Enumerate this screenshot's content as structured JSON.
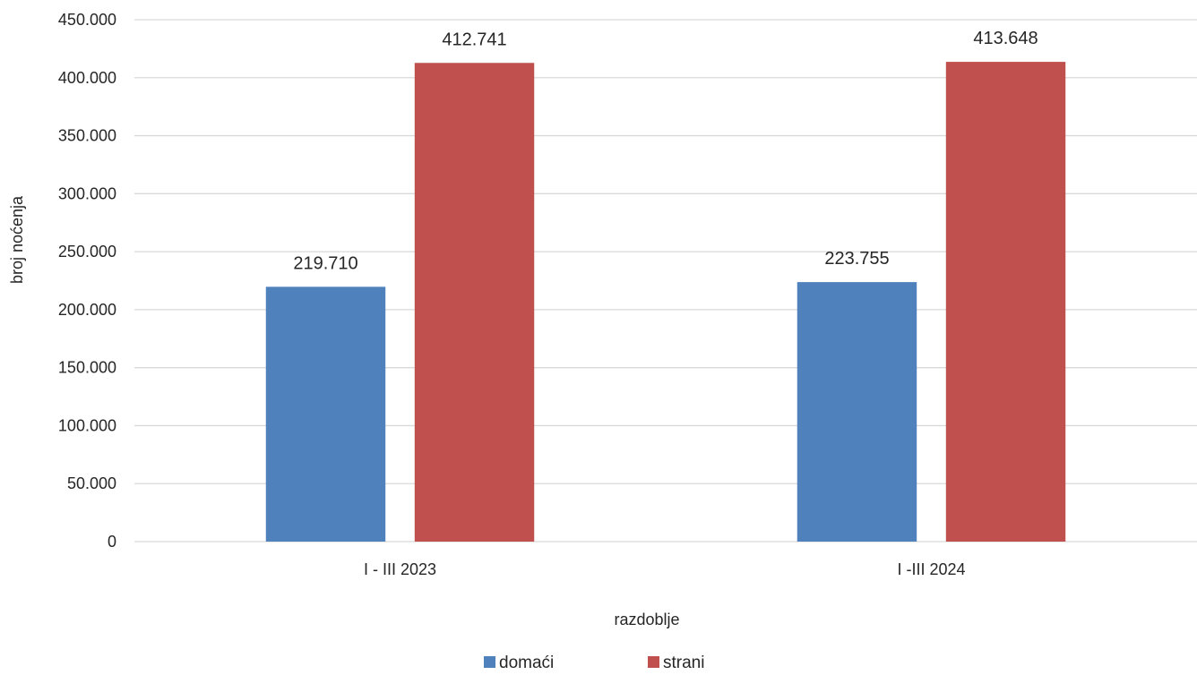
{
  "chart_data": {
    "type": "bar",
    "title": "",
    "categories": [
      "I - III 2023",
      "I -III 2024"
    ],
    "series": [
      {
        "name": "domaći",
        "values": [
          219710,
          223755
        ],
        "labels": [
          "219.710",
          "223.755"
        ],
        "color": "#4F81BD"
      },
      {
        "name": "strani",
        "values": [
          412741,
          413648
        ],
        "labels": [
          "412.741",
          "413.648"
        ],
        "color": "#C0504D"
      }
    ],
    "xlabel": "razdoblje",
    "ylabel": "broj noćenja",
    "ylim": [
      0,
      450000
    ],
    "y_ticks": [
      0,
      50000,
      100000,
      150000,
      200000,
      250000,
      300000,
      350000,
      400000,
      450000
    ],
    "y_tick_labels": [
      "0",
      "50.000",
      "100.000",
      "150.000",
      "200.000",
      "250.000",
      "300.000",
      "350.000",
      "400.000",
      "450.000"
    ],
    "grid": true,
    "gridline_color": "#D9D9D9",
    "legend_position": "bottom"
  }
}
